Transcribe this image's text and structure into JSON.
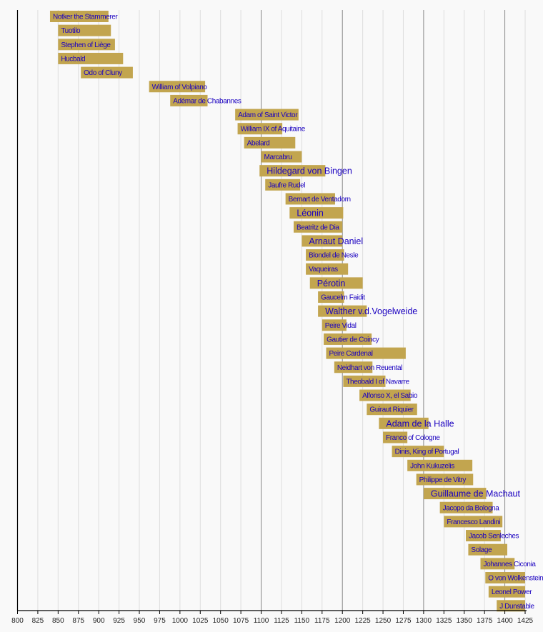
{
  "chart_data": {
    "type": "timeline",
    "xlim": [
      800,
      1425
    ],
    "x_ticks": [
      800,
      825,
      850,
      875,
      900,
      925,
      950,
      975,
      1000,
      1025,
      1050,
      1075,
      1100,
      1125,
      1150,
      1175,
      1200,
      1225,
      1250,
      1275,
      1300,
      1325,
      1350,
      1375,
      1400,
      1425
    ],
    "grid": true,
    "colors": {
      "bar": "#c2a54f",
      "label": "#1a00c0",
      "background": "#f9f9f9",
      "grid": "#dddddd",
      "grid_major": "#888888"
    },
    "items": [
      {
        "name": "Notker the Stammerer",
        "start": 840,
        "end": 912
      },
      {
        "name": "Tuotilo",
        "start": 850,
        "end": 915
      },
      {
        "name": "Stephen of Liège",
        "start": 850,
        "end": 920
      },
      {
        "name": "Hucbald",
        "start": 850,
        "end": 930
      },
      {
        "name": "Odo of Cluny",
        "start": 878,
        "end": 942
      },
      {
        "name": "William of Volpiano",
        "start": 962,
        "end": 1031
      },
      {
        "name": "Adémar de Chabannes",
        "start": 988,
        "end": 1034
      },
      {
        "name": "Adam of Saint Victor",
        "start": 1068,
        "end": 1146
      },
      {
        "name": "William IX of Aquitaine",
        "start": 1071,
        "end": 1126
      },
      {
        "name": "Abelard",
        "start": 1079,
        "end": 1142
      },
      {
        "name": "Marcabru",
        "start": 1100,
        "end": 1150
      },
      {
        "name": "Hildegard von Bingen",
        "start": 1098,
        "end": 1179,
        "emphasis": true
      },
      {
        "name": "Jaufre Rudel",
        "start": 1105,
        "end": 1148
      },
      {
        "name": "Bernart de Ventadorn",
        "start": 1130,
        "end": 1191
      },
      {
        "name": "Léonin",
        "start": 1135,
        "end": 1201,
        "emphasis": true
      },
      {
        "name": "Beatritz de Dia",
        "start": 1140,
        "end": 1200
      },
      {
        "name": "Arnaut Daniel",
        "start": 1150,
        "end": 1200,
        "emphasis": true
      },
      {
        "name": "Blondel de Nesle",
        "start": 1155,
        "end": 1202
      },
      {
        "name": "Vaqueiras",
        "start": 1155,
        "end": 1207
      },
      {
        "name": "Pérotin",
        "start": 1160,
        "end": 1225,
        "emphasis": true
      },
      {
        "name": "Gaucelm Faidit",
        "start": 1170,
        "end": 1202
      },
      {
        "name": "Walther v.d.Vogelweide",
        "start": 1170,
        "end": 1230,
        "emphasis": true
      },
      {
        "name": "Peire Vidal",
        "start": 1175,
        "end": 1205
      },
      {
        "name": "Gautier de Coincy",
        "start": 1177,
        "end": 1236
      },
      {
        "name": "Peire Cardenal",
        "start": 1180,
        "end": 1278
      },
      {
        "name": "Neidhart von Reuental",
        "start": 1190,
        "end": 1237
      },
      {
        "name": "Theobald I of Navarre",
        "start": 1201,
        "end": 1253
      },
      {
        "name": "Alfonso X, el Sabio",
        "start": 1221,
        "end": 1284
      },
      {
        "name": "Guiraut Riquier",
        "start": 1230,
        "end": 1292
      },
      {
        "name": "Adam de la Halle",
        "start": 1245,
        "end": 1306,
        "emphasis": true
      },
      {
        "name": "Franco of Cologne",
        "start": 1250,
        "end": 1280
      },
      {
        "name": "Dinis, King of Portugal",
        "start": 1261,
        "end": 1325
      },
      {
        "name": "John Kukuzelis",
        "start": 1280,
        "end": 1360
      },
      {
        "name": "Philippe de Vitry",
        "start": 1291,
        "end": 1361
      },
      {
        "name": "Guillaume de Machaut",
        "start": 1300,
        "end": 1377,
        "emphasis": true
      },
      {
        "name": "Jacopo da Bologna",
        "start": 1320,
        "end": 1385
      },
      {
        "name": "Francesco Landini",
        "start": 1325,
        "end": 1397
      },
      {
        "name": "Jacob Senleches",
        "start": 1352,
        "end": 1395
      },
      {
        "name": "Solage",
        "start": 1355,
        "end": 1403
      },
      {
        "name": "Johannes Ciconia",
        "start": 1370,
        "end": 1412
      },
      {
        "name": "O von Wolkenstein",
        "start": 1376,
        "end": 1425
      },
      {
        "name": "Leonel Power",
        "start": 1380,
        "end": 1425
      },
      {
        "name": "J Dunstable",
        "start": 1390,
        "end": 1425
      }
    ]
  }
}
